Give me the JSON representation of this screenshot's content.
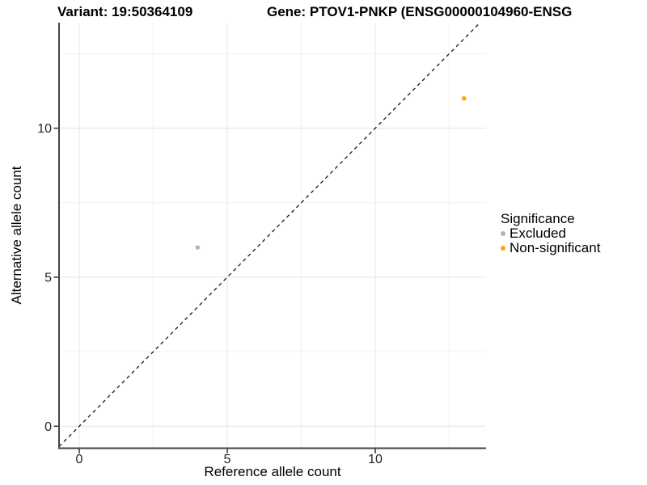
{
  "titles": {
    "left": "Variant: 19:50364109",
    "right": "Gene: PTOV1-PNKP (ENSG00000104960-ENSG"
  },
  "chart_data": {
    "type": "scatter",
    "title": "Variant: 19:50364109   Gene: PTOV1-PNKP (ENSG00000104960-ENSG",
    "xlabel": "Reference allele count",
    "ylabel": "Alternative allele count",
    "xlim": [
      -0.68,
      13.74
    ],
    "ylim": [
      -0.74,
      13.54
    ],
    "x_ticks": [
      0,
      5,
      10
    ],
    "y_ticks": [
      0,
      5,
      10
    ],
    "x_minor_gridlines": [
      2.5,
      7.5,
      12.5
    ],
    "y_minor_gridlines": [
      2.5,
      7.5,
      12.5
    ],
    "grid": true,
    "identity_line": {
      "style": "dashed",
      "slope": 1,
      "intercept": 0,
      "color": "#1a1a1a"
    },
    "series": [
      {
        "name": "Excluded",
        "color": "#B5B5B5",
        "points": [
          [
            4,
            6
          ]
        ]
      },
      {
        "name": "Non-significant",
        "color": "#FFA500",
        "points": [
          [
            13,
            11
          ]
        ]
      }
    ],
    "legend": {
      "title": "Significance",
      "position": "right"
    }
  },
  "colors": {
    "background": "#ffffff",
    "axis_line": "#444444",
    "tick_label": "#262626",
    "gridline_major": "#e7e7e7",
    "gridline_minor": "#f1f1f1",
    "excluded_point": "#B5B5B5",
    "non_significant_point": "#FFA500"
  }
}
